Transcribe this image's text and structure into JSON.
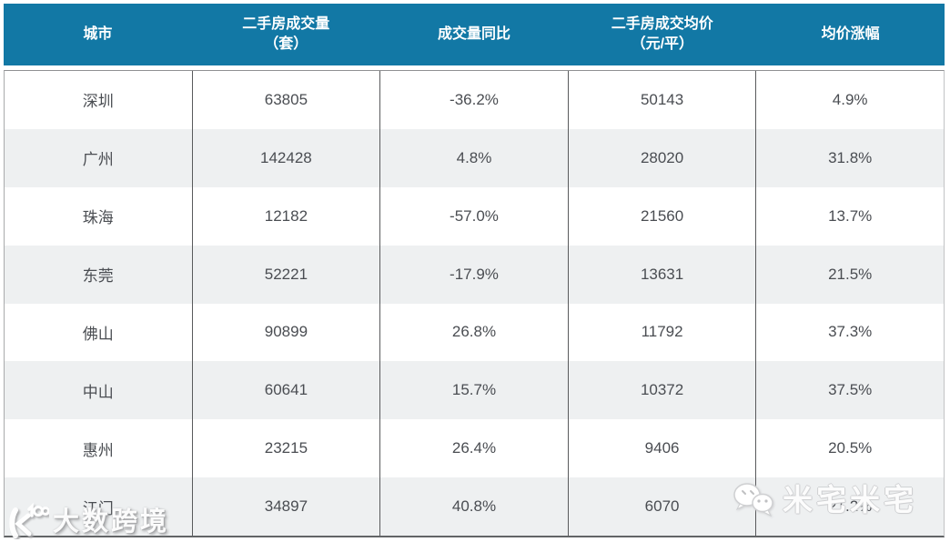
{
  "table": {
    "columns": [
      {
        "label": "城市"
      },
      {
        "label": "二手房成交量\n（套）"
      },
      {
        "label": "成交量同比"
      },
      {
        "label": "二手房成交均价\n（元/平）"
      },
      {
        "label": "均价涨幅"
      }
    ],
    "rows": [
      {
        "city": "深圳",
        "volume": "63805",
        "volume_yoy": "-36.2%",
        "avg_price": "50143",
        "price_change": "4.9%"
      },
      {
        "city": "广州",
        "volume": "142428",
        "volume_yoy": "4.8%",
        "avg_price": "28020",
        "price_change": "31.8%"
      },
      {
        "city": "珠海",
        "volume": "12182",
        "volume_yoy": "-57.0%",
        "avg_price": "21560",
        "price_change": "13.7%"
      },
      {
        "city": "东莞",
        "volume": "52221",
        "volume_yoy": "-17.9%",
        "avg_price": "13631",
        "price_change": "21.5%"
      },
      {
        "city": "佛山",
        "volume": "90899",
        "volume_yoy": "26.8%",
        "avg_price": "11792",
        "price_change": "37.3%"
      },
      {
        "city": "中山",
        "volume": "60641",
        "volume_yoy": "15.7%",
        "avg_price": "10372",
        "price_change": "37.5%"
      },
      {
        "city": "惠州",
        "volume": "23215",
        "volume_yoy": "26.4%",
        "avg_price": "9406",
        "price_change": "20.5%"
      },
      {
        "city": "江门",
        "volume": "34897",
        "volume_yoy": "40.8%",
        "avg_price": "6070",
        "price_change": "21.2%"
      }
    ]
  },
  "watermarks": {
    "bottom_left": {
      "text": "大数跨境",
      "icon": "dashu-100-logo-icon"
    },
    "bottom_right": {
      "text": "米宅米宅",
      "icon": "wechat-icon"
    }
  },
  "colors": {
    "header_bg": "#1278A5",
    "header_text": "#FFFFFF",
    "row_bg": "#FFFFFF",
    "row_alt_bg": "#EEF0F1",
    "body_text": "#4A4D52",
    "grid_line": "#595A5C"
  }
}
